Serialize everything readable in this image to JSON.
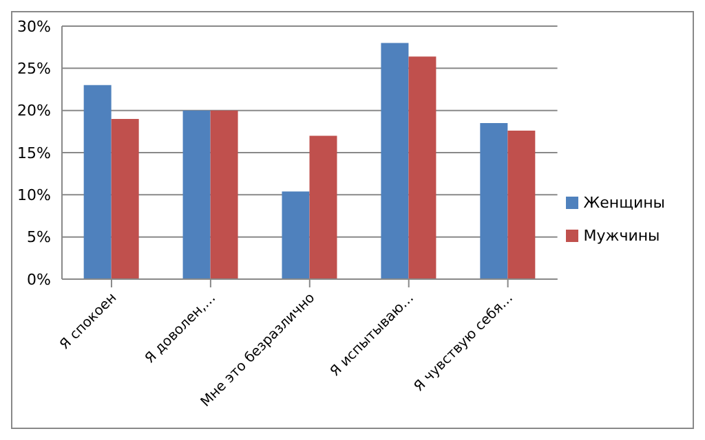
{
  "chart_data": {
    "type": "bar",
    "categories": [
      "Я спокоен",
      "Я доволен,…",
      "Мне это безразлично",
      "Я испытываю…",
      "Я чувствую себя…"
    ],
    "series": [
      {
        "name": "Женщины",
        "color": "#4f81bd",
        "values": [
          23,
          20,
          10.4,
          28,
          18.5
        ]
      },
      {
        "name": "Мужчины",
        "color": "#c0504d",
        "values": [
          19,
          20,
          17,
          26.4,
          17.6
        ]
      }
    ],
    "ylim": [
      0,
      30
    ],
    "yticks": [
      {
        "value": 0,
        "label": "0%"
      },
      {
        "value": 5,
        "label": "5%"
      },
      {
        "value": 10,
        "label": "10%"
      },
      {
        "value": 15,
        "label": "15%"
      },
      {
        "value": 20,
        "label": "20%"
      },
      {
        "value": 25,
        "label": "25%"
      },
      {
        "value": 30,
        "label": "30%"
      }
    ],
    "grid": "y",
    "legend": "right"
  }
}
